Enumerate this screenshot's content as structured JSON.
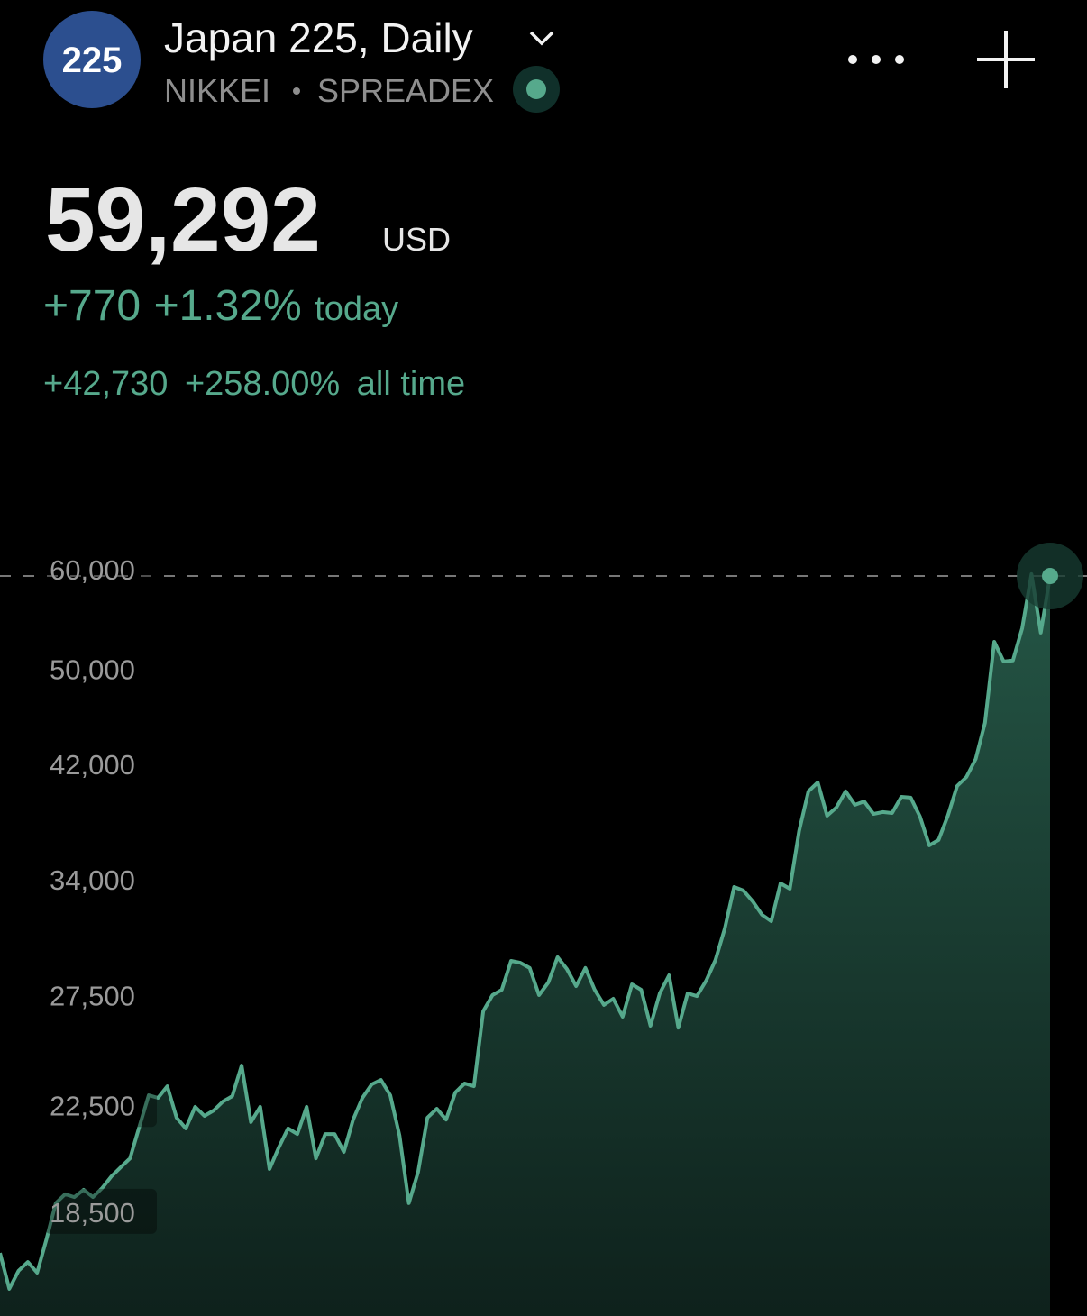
{
  "header": {
    "logo": "225",
    "title": "Japan 225, Daily",
    "exchange": "NIKKEI",
    "broker": "SPREADEX"
  },
  "quote": {
    "price": "59,292",
    "currency": "USD",
    "change": "+770",
    "change_percent": "+1.32%",
    "change_period": "today",
    "all_time_change": "+42,730",
    "all_time_percent": "+258.00%",
    "all_time_period": "all time"
  },
  "chart_data": {
    "type": "area",
    "log_scale": true,
    "color": "#56a98c",
    "ylim": [
      15300,
      68000
    ],
    "yticks": [
      {
        "value": 18500,
        "label": "18,500"
      },
      {
        "value": 22500,
        "label": "22,500"
      },
      {
        "value": 27500,
        "label": "27,500"
      },
      {
        "value": 34000,
        "label": "34,000"
      },
      {
        "value": 42000,
        "label": "42,000"
      },
      {
        "value": 50000,
        "label": "50,000"
      },
      {
        "value": 60000,
        "label": "60,000"
      }
    ],
    "values": [
      17170,
      16080,
      16620,
      16890,
      16560,
      17600,
      18810,
      19120,
      19020,
      19280,
      19020,
      19340,
      19760,
      20090,
      20420,
      21640,
      22920,
      22810,
      23300,
      22000,
      21570,
      22440,
      22070,
      22290,
      22660,
      22880,
      24200,
      21820,
      22440,
      20020,
      20830,
      21570,
      21350,
      22440,
      20420,
      21350,
      21350,
      20660,
      21920,
      22810,
      23380,
      23570,
      22920,
      21280,
      18810,
      19920,
      22000,
      22360,
      21920,
      23040,
      23420,
      23300,
      26730,
      27530,
      27800,
      29310,
      29210,
      28930,
      27530,
      28170,
      29510,
      28880,
      27990,
      28930,
      27800,
      27040,
      27350,
      26460,
      28080,
      27800,
      26030,
      27620,
      28550,
      25940,
      27620,
      27480,
      28270,
      29360,
      31110,
      33560,
      33340,
      32690,
      31890,
      31520,
      33780,
      33450,
      37180,
      39980,
      40640,
      38230,
      38810,
      39980,
      39000,
      39250,
      38360,
      38490,
      38420,
      39580,
      39520,
      38170,
      36210,
      36570,
      38230,
      40370,
      41040,
      42420,
      45320,
      52570,
      50700,
      50790,
      53890,
      59500,
      53450,
      59292
    ]
  }
}
